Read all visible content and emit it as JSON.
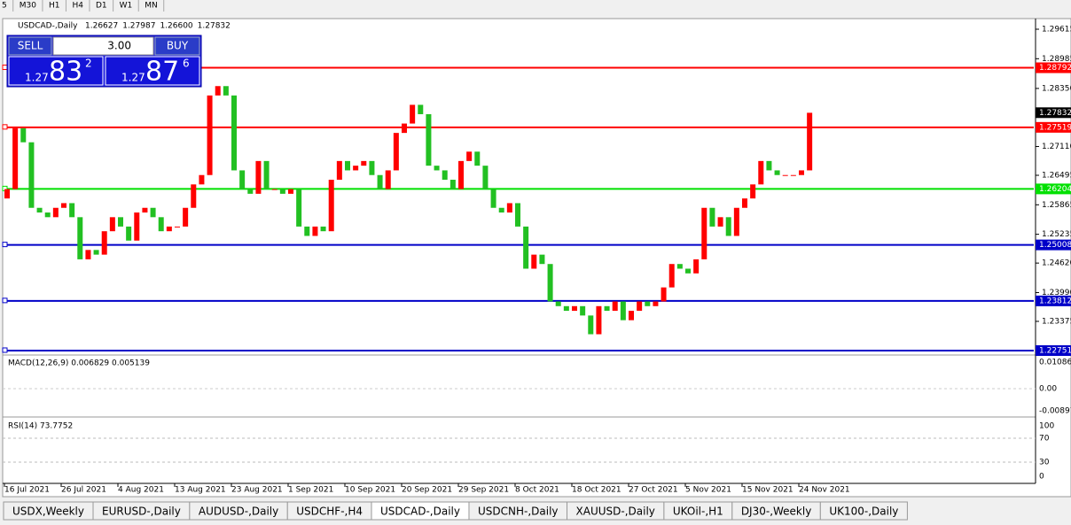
{
  "toolbar": [
    "5",
    "M30",
    "H1",
    "H4",
    "D1",
    "W1",
    "MN"
  ],
  "header": {
    "symbol": "USDCAD-,Daily",
    "ohlc": [
      "1.26627",
      "1.27987",
      "1.26600",
      "1.27832"
    ]
  },
  "trade_panel": {
    "sell": "SELL",
    "buy": "BUY",
    "lots": "3.00",
    "bid": {
      "big": "1.27",
      "pips": "83",
      "frac": "2"
    },
    "ask": {
      "big": "1.27",
      "pips": "87",
      "frac": "6"
    }
  },
  "chart_data": {
    "type": "candlestick",
    "first_open": 1.26,
    "closes": [
      1.262,
      1.275,
      1.272,
      1.258,
      1.257,
      1.256,
      1.258,
      1.259,
      1.256,
      1.247,
      1.249,
      1.248,
      1.253,
      1.256,
      1.254,
      1.251,
      1.257,
      1.258,
      1.256,
      1.253,
      1.254,
      1.254,
      1.258,
      1.263,
      1.265,
      1.282,
      1.284,
      1.282,
      1.266,
      1.262,
      1.261,
      1.268,
      1.262,
      1.262,
      1.261,
      1.262,
      1.254,
      1.252,
      1.254,
      1.253,
      1.264,
      1.268,
      1.266,
      1.267,
      1.268,
      1.265,
      1.262,
      1.266,
      1.274,
      1.276,
      1.28,
      1.278,
      1.267,
      1.266,
      1.264,
      1.262,
      1.268,
      1.27,
      1.267,
      1.262,
      1.258,
      1.257,
      1.259,
      1.254,
      1.245,
      1.248,
      1.246,
      1.238,
      1.237,
      1.236,
      1.237,
      1.235,
      1.231,
      1.237,
      1.236,
      1.238,
      1.234,
      1.236,
      1.238,
      1.237,
      1.238,
      1.241,
      1.246,
      1.245,
      1.244,
      1.247,
      1.258,
      1.254,
      1.256,
      1.252,
      1.258,
      1.26,
      1.263,
      1.268,
      1.266,
      1.265,
      1.265,
      1.265,
      1.266,
      1.2783
    ],
    "up_color": "#ff0000",
    "down_color": "#22c022",
    "ylim": [
      1.22675,
      1.29823
    ],
    "yticks": [
      1.29615,
      1.28985,
      {
        "value": 1.2835,
        "label": "1.28350"
      },
      {
        "value": 1.2711,
        "label": "1.27110"
      },
      1.26495,
      1.25865,
      1.25235,
      {
        "value": 1.2462,
        "label": "1.24620"
      },
      {
        "value": 1.2399,
        "label": "1.23990"
      },
      1.23375
    ],
    "levels": [
      {
        "value": 1.28792,
        "color": "#ff0000"
      },
      {
        "value": 1.27519,
        "color": "#ff0000"
      },
      {
        "value": 1.26204,
        "color": "#00e000"
      },
      {
        "value": 1.25008,
        "color": "#0000c8"
      },
      {
        "value": 1.23812,
        "color": "#0000c8"
      },
      {
        "value": 1.22751,
        "color": "#0000c8"
      }
    ],
    "last_price": 1.27832,
    "x_labels": [
      "16 Jul 2021",
      "26 Jul 2021",
      "4 Aug 2021",
      "13 Aug 2021",
      "23 Aug 2021",
      "1 Sep 2021",
      "10 Sep 2021",
      "20 Sep 2021",
      "29 Sep 2021",
      "8 Oct 2021",
      "18 Oct 2021",
      "27 Oct 2021",
      "5 Nov 2021",
      "15 Nov 2021",
      "24 Nov 2021"
    ]
  },
  "macd": {
    "label": "MACD(12,26,9) 0.006829 0.005139",
    "ticks": [
      "0.010869",
      "0.00",
      "-0.008974"
    ]
  },
  "rsi": {
    "label": "RSI(14) 73.7752",
    "ticks": [
      "100",
      "70",
      "30",
      "0"
    ]
  },
  "tabs": [
    "USDX,Weekly",
    "EURUSD-,Daily",
    "AUDUSD-,Daily",
    "USDCHF-,H4",
    "USDCAD-,Daily",
    "USDCNH-,Daily",
    "XAUUSD-,Daily",
    "UKOil-,H1",
    "DJ30-,Weekly",
    "UK100-,Daily"
  ]
}
